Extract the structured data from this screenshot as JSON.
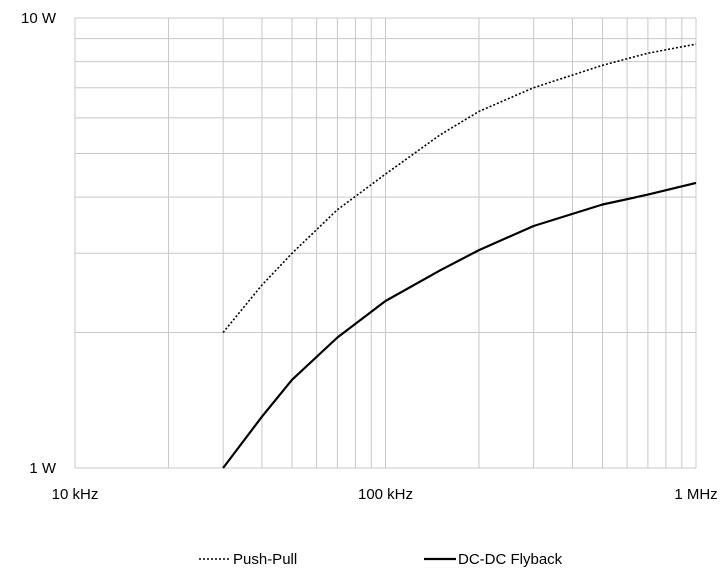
{
  "chart_data": {
    "type": "line",
    "x_scale": "log",
    "y_scale": "log",
    "xlim": [
      10000,
      1000000
    ],
    "ylim": [
      1,
      10
    ],
    "grid": true,
    "legend_position": "bottom",
    "x_ticks": [
      {
        "value": 10000,
        "label": "10 kHz"
      },
      {
        "value": 100000,
        "label": "100 kHz"
      },
      {
        "value": 1000000,
        "label": "1 MHz"
      }
    ],
    "y_ticks": [
      {
        "value": 10,
        "label": "10 W"
      },
      {
        "value": 1,
        "label": "1 W"
      }
    ],
    "series": [
      {
        "name": "Push-Pull",
        "style": "dotted",
        "color": "#000000",
        "points": [
          {
            "x": 30000,
            "y": 2.0
          },
          {
            "x": 40000,
            "y": 2.55
          },
          {
            "x": 50000,
            "y": 3.0
          },
          {
            "x": 70000,
            "y": 3.75
          },
          {
            "x": 100000,
            "y": 4.5
          },
          {
            "x": 150000,
            "y": 5.5
          },
          {
            "x": 200000,
            "y": 6.2
          },
          {
            "x": 300000,
            "y": 7.0
          },
          {
            "x": 500000,
            "y": 7.85
          },
          {
            "x": 700000,
            "y": 8.35
          },
          {
            "x": 1000000,
            "y": 8.75
          }
        ]
      },
      {
        "name": "DC-DC Flyback",
        "style": "solid",
        "color": "#000000",
        "points": [
          {
            "x": 30000,
            "y": 1.0
          },
          {
            "x": 40000,
            "y": 1.3
          },
          {
            "x": 50000,
            "y": 1.57
          },
          {
            "x": 70000,
            "y": 1.95
          },
          {
            "x": 100000,
            "y": 2.35
          },
          {
            "x": 150000,
            "y": 2.75
          },
          {
            "x": 200000,
            "y": 3.05
          },
          {
            "x": 300000,
            "y": 3.45
          },
          {
            "x": 500000,
            "y": 3.85
          },
          {
            "x": 700000,
            "y": 4.05
          },
          {
            "x": 1000000,
            "y": 4.3
          }
        ]
      }
    ]
  }
}
